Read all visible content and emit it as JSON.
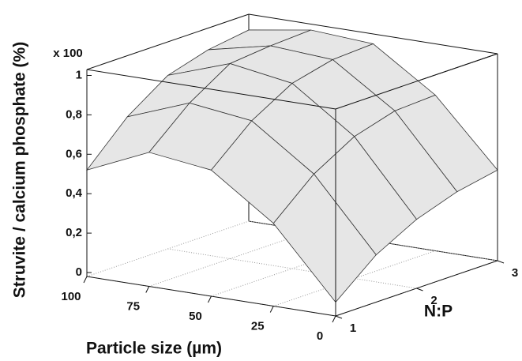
{
  "chart_data": {
    "type": "surface",
    "x_label": "Particle size (µm)",
    "y_label": "N:P",
    "z_label": "Struvite / calcium phosphate (%)",
    "z_multiplier": "x 100",
    "x": [
      0,
      25,
      50,
      75,
      100
    ],
    "y": [
      1,
      1.5,
      2,
      2.5,
      3
    ],
    "z": [
      [
        0.05,
        0.4,
        0.62,
        0.66,
        0.52
      ],
      [
        0.22,
        0.58,
        0.8,
        0.84,
        0.72
      ],
      [
        0.33,
        0.7,
        0.92,
        0.97,
        0.86
      ],
      [
        0.4,
        0.76,
        0.97,
        0.99,
        0.92
      ],
      [
        0.44,
        0.77,
        0.98,
        1.0,
        0.95
      ]
    ],
    "xlim": [
      0,
      100
    ],
    "ylim": [
      1,
      3
    ],
    "zlim": [
      -0.02,
      1.03
    ],
    "xticks": [
      0,
      25,
      50,
      75,
      100
    ],
    "yticks": [
      1,
      2,
      3
    ],
    "zticks": [
      0,
      {
        "value": 0.2,
        "label": "0,2"
      },
      {
        "value": 0.4,
        "label": "0,4"
      },
      {
        "value": 0.6,
        "label": "0,6"
      },
      {
        "value": 0.8,
        "label": "0,8"
      },
      1
    ],
    "color": "#e6e6e6",
    "grid": true
  }
}
